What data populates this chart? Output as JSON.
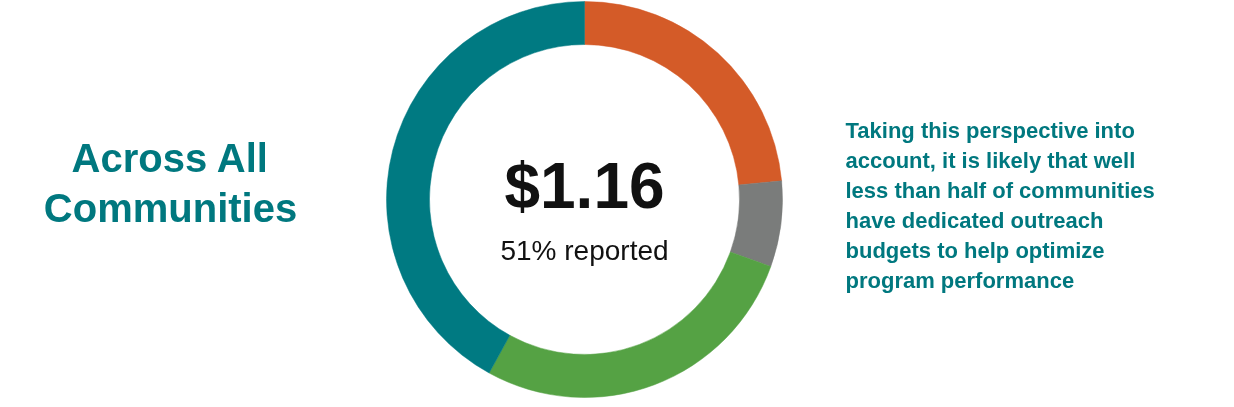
{
  "chart_data": {
    "type": "donut",
    "title": "Across All\nCommunities",
    "categories": [
      null,
      null,
      null,
      null
    ],
    "values": [
      23.5,
      7,
      27.5,
      42
    ],
    "colors": [
      "#d45b28",
      "#7a7c7b",
      "#55a244",
      "#007a82"
    ],
    "annotations": [
      "$1.16",
      "51% reported",
      "Taking this perspective into\naccount, it is likely that well\nless than half of communities\nhave dedicated outreach\nbudgets to help optimize\nprogram performance"
    ]
  }
}
